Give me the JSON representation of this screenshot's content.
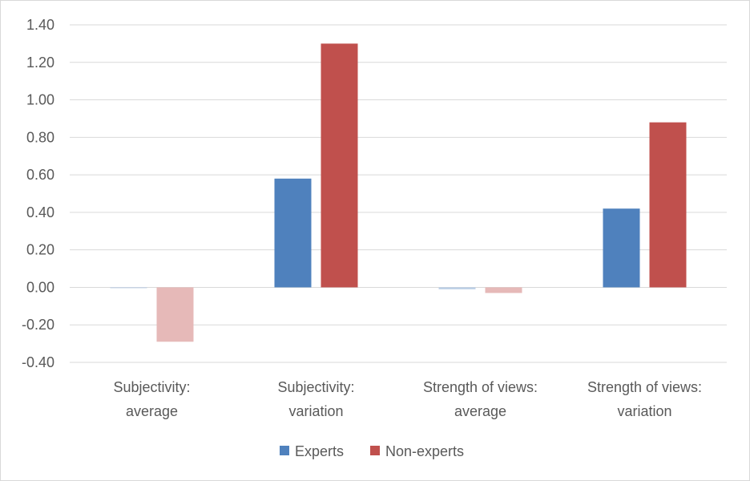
{
  "chart_data": {
    "type": "bar",
    "title": "",
    "xlabel": "",
    "ylabel": "",
    "categories": [
      [
        "Subjectivity:",
        "average"
      ],
      [
        "Subjectivity:",
        "variation"
      ],
      [
        "Strength of views:",
        "average"
      ],
      [
        "Strength of views:",
        "variation"
      ]
    ],
    "series": [
      {
        "name": "Experts",
        "color": "#4f81bd",
        "light_color": "#b9cde5",
        "values": [
          0.0,
          0.58,
          -0.01,
          0.42
        ],
        "highlighted": [
          false,
          true,
          false,
          true
        ]
      },
      {
        "name": "Non-experts",
        "color": "#c0504d",
        "light_color": "#e6b9b8",
        "values": [
          -0.29,
          1.3,
          -0.03,
          0.88
        ],
        "highlighted": [
          false,
          true,
          false,
          true
        ]
      }
    ],
    "ylim": [
      -0.4,
      1.4
    ],
    "yticks": [
      -0.4,
      -0.2,
      0.0,
      0.2,
      0.4,
      0.6,
      0.8,
      1.0,
      1.2,
      1.4
    ],
    "ytick_labels": [
      "-0.40",
      "-0.20",
      "0.00",
      "0.20",
      "0.40",
      "0.60",
      "0.80",
      "1.00",
      "1.20",
      "1.40"
    ],
    "grid": true,
    "legend_position": "bottom"
  }
}
